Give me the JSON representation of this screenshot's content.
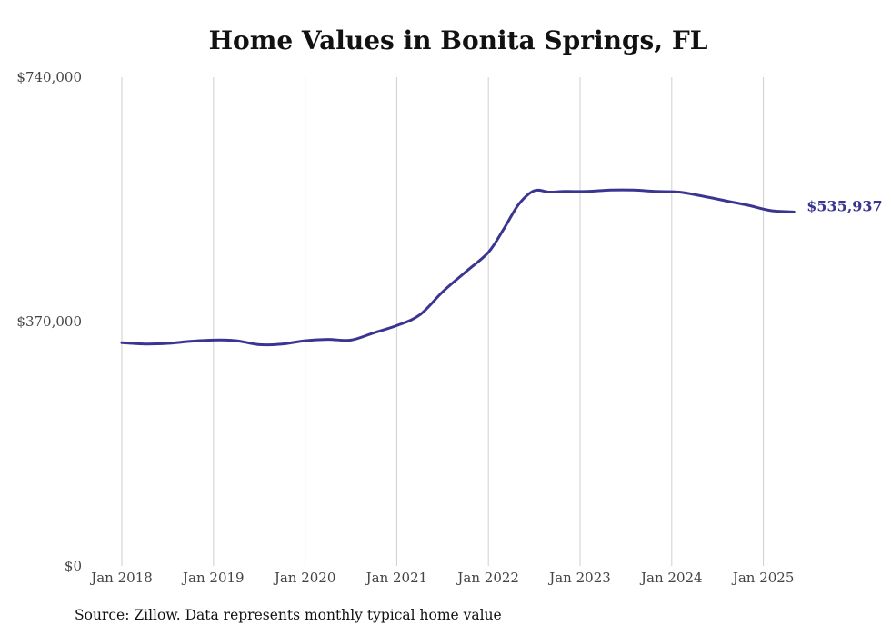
{
  "chart_data": {
    "type": "line",
    "title": "Home Values in Bonita Springs, FL",
    "xlabel": "",
    "ylabel": "",
    "source": "Source: Zillow. Data represents monthly typical home value",
    "y_ticks": [
      "$0",
      "$370,000",
      "$740,000"
    ],
    "y_tick_values": [
      0,
      370000,
      740000
    ],
    "ylim": [
      0,
      740000
    ],
    "x_ticks": [
      "Jan 2018",
      "Jan 2019",
      "Jan 2020",
      "Jan 2021",
      "Jan 2022",
      "Jan 2023",
      "Jan 2024",
      "Jan 2025"
    ],
    "x_tick_dates": [
      "2018-01",
      "2019-01",
      "2020-01",
      "2021-01",
      "2022-01",
      "2023-01",
      "2024-01",
      "2025-01"
    ],
    "xlim": [
      "2018-01",
      "2025-05"
    ],
    "grid": "vertical",
    "line_color": "#3b3592",
    "end_label": "$535,937",
    "series": [
      {
        "x": [
          "2018-01",
          "2018-04",
          "2018-07",
          "2018-10",
          "2019-01",
          "2019-04",
          "2019-07",
          "2019-10",
          "2020-01",
          "2020-04",
          "2020-07",
          "2020-10",
          "2021-01",
          "2021-04",
          "2021-07",
          "2021-10",
          "2022-01",
          "2022-03",
          "2022-05",
          "2022-07",
          "2022-09",
          "2022-11",
          "2023-02",
          "2023-05",
          "2023-08",
          "2023-11",
          "2024-02",
          "2024-05",
          "2024-08",
          "2024-11",
          "2025-02",
          "2025-05"
        ],
        "values": [
          338000,
          336000,
          337000,
          340000,
          342000,
          341000,
          335000,
          336000,
          341000,
          343000,
          342000,
          353000,
          364000,
          380000,
          415000,
          445000,
          475000,
          510000,
          548000,
          568000,
          566000,
          567000,
          567000,
          569000,
          569000,
          567000,
          566000,
          560000,
          553000,
          546000,
          538000,
          535937
        ]
      }
    ]
  }
}
